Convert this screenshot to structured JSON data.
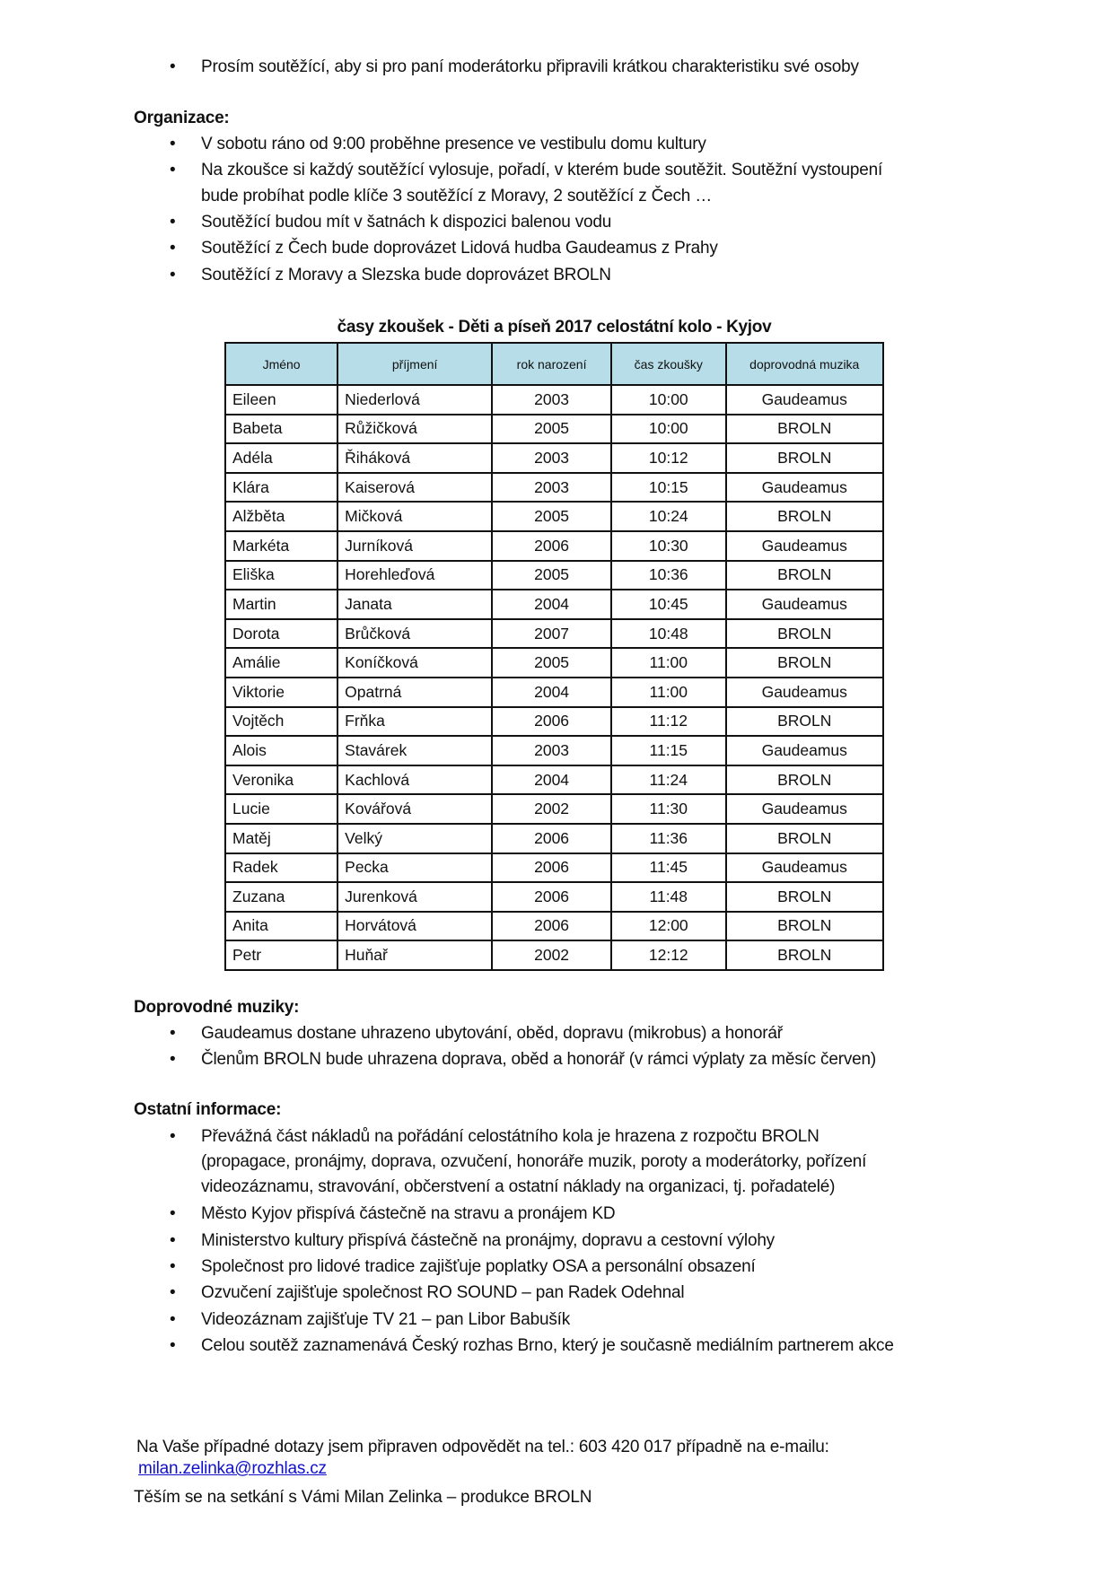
{
  "intro_bullets": [
    "Prosím soutěžící, aby si pro paní moderátorku připravili krátkou charakteristiku své osoby"
  ],
  "organizace": {
    "heading": "Organizace:",
    "items": [
      [
        "V sobotu ráno od 9:00 proběhne presence ve vestibulu domu kultury"
      ],
      [
        "Na zkoušce si každý soutěžící vylosuje, pořadí, v kterém bude soutěžit. Soutěžní vystoupení",
        "bude probíhat podle klíče 3 soutěžící z Moravy, 2 soutěžící z Čech …"
      ],
      [
        "Soutěžící budou mít v šatnách k dispozici balenou vodu"
      ],
      [
        "Soutěžící z Čech bude doprovázet Lidová hudba Gaudeamus z Prahy"
      ],
      [
        "Soutěžící z Moravy a Slezska bude doprovázet BROLN"
      ]
    ]
  },
  "table": {
    "title": "časy zkoušek - Děti a píseň 2017 celostátní kolo - Kyjov",
    "header_color": "#b7dde8",
    "columns": [
      "Jméno",
      "příjmení",
      "rok narození",
      "čas zkoušky",
      "doprovodná muzika"
    ],
    "rows": [
      [
        "Eileen",
        "Niederlová",
        "2003",
        "10:00",
        "Gaudeamus"
      ],
      [
        "Babeta",
        "Růžičková",
        "2005",
        "10:00",
        "BROLN"
      ],
      [
        "Adéla",
        "Řiháková",
        "2003",
        "10:12",
        "BROLN"
      ],
      [
        "Klára",
        "Kaiserová",
        "2003",
        "10:15",
        "Gaudeamus"
      ],
      [
        "Alžběta",
        "Mičková",
        "2005",
        "10:24",
        "BROLN"
      ],
      [
        "Markéta",
        "Jurníková",
        "2006",
        "10:30",
        "Gaudeamus"
      ],
      [
        "Eliška",
        "Horehleďová",
        "2005",
        "10:36",
        "BROLN"
      ],
      [
        "Martin",
        "Janata",
        "2004",
        "10:45",
        "Gaudeamus"
      ],
      [
        "Dorota",
        "Brůčková",
        "2007",
        "10:48",
        "BROLN"
      ],
      [
        "Amálie",
        "Koníčková",
        "2005",
        "11:00",
        "BROLN"
      ],
      [
        "Viktorie",
        "Opatrná",
        "2004",
        "11:00",
        "Gaudeamus"
      ],
      [
        "Vojtěch",
        "Frňka",
        "2006",
        "11:12",
        "BROLN"
      ],
      [
        "Alois",
        "Stavárek",
        "2003",
        "11:15",
        "Gaudeamus"
      ],
      [
        "Veronika",
        "Kachlová",
        "2004",
        "11:24",
        "BROLN"
      ],
      [
        "Lucie",
        "Kovářová",
        "2002",
        "11:30",
        "Gaudeamus"
      ],
      [
        "Matěj",
        "Velký",
        "2006",
        "11:36",
        "BROLN"
      ],
      [
        "Radek",
        "Pecka",
        "2006",
        "11:45",
        "Gaudeamus"
      ],
      [
        "Zuzana",
        "Jurenková",
        "2006",
        "11:48",
        "BROLN"
      ],
      [
        "Anita",
        "Horvátová",
        "2006",
        "12:00",
        "BROLN"
      ],
      [
        "Petr",
        "Huňař",
        "2002",
        "12:12",
        "BROLN"
      ]
    ]
  },
  "doprovodne": {
    "heading": "Doprovodné muziky:",
    "items": [
      [
        "Gaudeamus dostane uhrazeno ubytování, oběd, dopravu (mikrobus) a honorář"
      ],
      [
        "Členům BROLN bude uhrazena doprava, oběd a honorář (v rámci výplaty za měsíc červen)"
      ]
    ]
  },
  "ostatni": {
    "heading": "Ostatní informace:",
    "items": [
      [
        "Převážná část nákladů na pořádání celostátního kola je hrazena z rozpočtu BROLN",
        "(propagace, pronájmy, doprava, ozvučení, honoráře muzik, poroty a moderátorky, pořízení",
        "videozáznamu, stravování, občerstvení a ostatní náklady na organizaci, tj. pořadatelé)"
      ],
      [
        "Město Kyjov přispívá částečně na stravu a pronájem KD"
      ],
      [
        "Ministerstvo kultury přispívá částečně na pronájmy, dopravu a cestovní výlohy"
      ],
      [
        "Společnost pro lidové tradice zajišťuje poplatky OSA a personální obsazení"
      ],
      [
        "Ozvučení zajišťuje společnost RO SOUND – pan Radek Odehnal"
      ],
      [
        "Videozáznam zajišťuje TV 21 – pan Libor Babušík"
      ],
      [
        "Celou soutěž zaznamenává Český rozhas Brno, který je současně mediálním partnerem akce"
      ]
    ]
  },
  "contact": {
    "text": "Na Vaše případné dotazy jsem připraven odpovědět na tel.: 603 420 017 případně na e-mailu:",
    "email": "milan.zelinka@rozhlas.cz",
    "link_color": "#1010cc"
  },
  "closing": "Těším se na setkání s Vámi Milan Zelinka – produkce BROLN"
}
